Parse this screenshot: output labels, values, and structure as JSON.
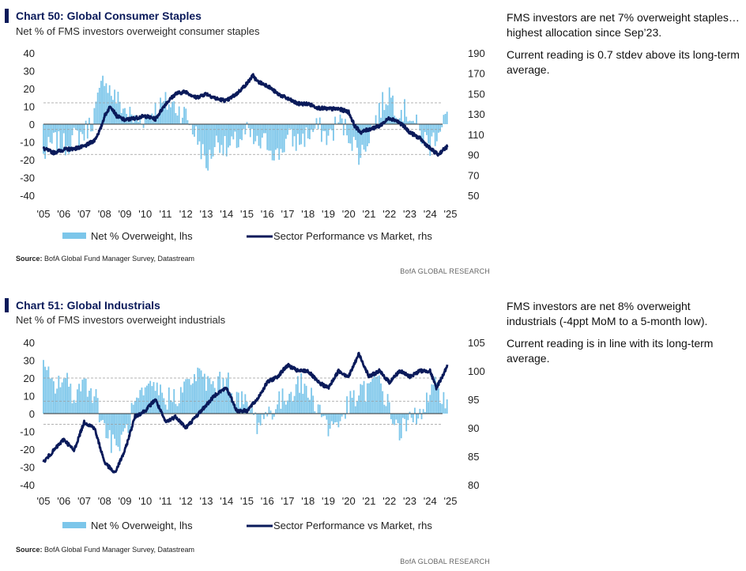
{
  "charts": [
    {
      "title": "Chart 50: Global Consumer Staples",
      "subtitle": "Net % of FMS investors overweight consumer staples",
      "source_label": "Source:",
      "source_text": "BofA Global Fund Manager Survey, Datastream",
      "brand": "BofA GLOBAL RESEARCH",
      "notes": [
        "FMS investors are net 7% overweight staples…highest allocation since Sep’23.",
        "Current reading is 0.7 stdev above its long-term average."
      ]
    },
    {
      "title": "Chart 51: Global Industrials",
      "subtitle": "Net % of FMS investors overweight industrials",
      "source_label": "Source:",
      "source_text": "BofA Global Fund Manager Survey, Datastream",
      "brand": "BofA GLOBAL RESEARCH",
      "notes": [
        "FMS investors are net 8% overweight industrials (-4ppt MoM to a 5-month low).",
        "Current reading is in line with its long-term average."
      ]
    }
  ],
  "chart_data": [
    {
      "type": "bar+line",
      "x_tick_labels": [
        "'05",
        "'06",
        "'07",
        "'08",
        "'09",
        "'10",
        "'11",
        "'12",
        "'13",
        "'14",
        "'15",
        "'16",
        "'17",
        "'18",
        "'19",
        "'20",
        "'21",
        "'22",
        "'23",
        "'24",
        "'25"
      ],
      "x_start_year": 2005,
      "x_end_year": 2025,
      "left_axis": {
        "ticks": [
          "40",
          "30",
          "20",
          "10",
          "0",
          "-10",
          "-20",
          "-30",
          "-40"
        ],
        "ylim": [
          -40,
          40
        ]
      },
      "right_axis": {
        "ticks": [
          "190",
          "170",
          "150",
          "130",
          "110",
          "90",
          "70",
          "50"
        ],
        "ylim": [
          50,
          190
        ]
      },
      "reference_lines": [
        12,
        0,
        -3,
        -17
      ],
      "series": [
        {
          "name": "Net % Overweight, lhs",
          "kind": "bar",
          "color": "#7cc6ea",
          "anchors": [
            [
              2005.0,
              -18
            ],
            [
              2005.5,
              -10
            ],
            [
              2006.0,
              -12
            ],
            [
              2006.5,
              -8
            ],
            [
              2007.0,
              -5
            ],
            [
              2007.4,
              2
            ],
            [
              2007.8,
              18
            ],
            [
              2008.0,
              28
            ],
            [
              2008.3,
              18
            ],
            [
              2008.6,
              14
            ],
            [
              2009.0,
              8
            ],
            [
              2009.5,
              2
            ],
            [
              2010.0,
              4
            ],
            [
              2010.5,
              8
            ],
            [
              2011.0,
              12
            ],
            [
              2011.5,
              10
            ],
            [
              2012.0,
              5
            ],
            [
              2012.5,
              -6
            ],
            [
              2012.8,
              -15
            ],
            [
              2013.0,
              -24
            ],
            [
              2013.3,
              -15
            ],
            [
              2013.6,
              -8
            ],
            [
              2014.0,
              -15
            ],
            [
              2014.5,
              -10
            ],
            [
              2015.0,
              -5
            ],
            [
              2015.5,
              -12
            ],
            [
              2016.0,
              -10
            ],
            [
              2016.5,
              -18
            ],
            [
              2017.0,
              -8
            ],
            [
              2017.5,
              -10
            ],
            [
              2018.0,
              -6
            ],
            [
              2018.5,
              -2
            ],
            [
              2019.0,
              -8
            ],
            [
              2019.5,
              2
            ],
            [
              2020.0,
              -5
            ],
            [
              2020.3,
              -12
            ],
            [
              2020.6,
              -18
            ],
            [
              2021.0,
              -6
            ],
            [
              2021.3,
              2
            ],
            [
              2021.7,
              12
            ],
            [
              2022.0,
              18
            ],
            [
              2022.3,
              10
            ],
            [
              2022.6,
              8
            ],
            [
              2023.0,
              6
            ],
            [
              2023.5,
              -5
            ],
            [
              2024.0,
              -12
            ],
            [
              2024.3,
              -5
            ],
            [
              2024.6,
              2
            ],
            [
              2024.85,
              7
            ]
          ],
          "last_value": 7
        },
        {
          "name": "Sector Performance vs Market, rhs",
          "kind": "line",
          "color": "#0a1a5a",
          "anchors": [
            [
              2005.0,
              96
            ],
            [
              2005.5,
              92
            ],
            [
              2006.0,
              95
            ],
            [
              2006.5,
              96
            ],
            [
              2007.0,
              98
            ],
            [
              2007.5,
              104
            ],
            [
              2007.8,
              115
            ],
            [
              2008.0,
              128
            ],
            [
              2008.3,
              138
            ],
            [
              2008.6,
              128
            ],
            [
              2009.0,
              124
            ],
            [
              2009.5,
              126
            ],
            [
              2010.0,
              128
            ],
            [
              2010.5,
              125
            ],
            [
              2011.0,
              140
            ],
            [
              2011.5,
              150
            ],
            [
              2012.0,
              152
            ],
            [
              2012.5,
              146
            ],
            [
              2013.0,
              150
            ],
            [
              2013.5,
              145
            ],
            [
              2014.0,
              143
            ],
            [
              2014.5,
              150
            ],
            [
              2015.0,
              160
            ],
            [
              2015.3,
              168
            ],
            [
              2015.5,
              162
            ],
            [
              2016.0,
              158
            ],
            [
              2016.5,
              150
            ],
            [
              2017.0,
              145
            ],
            [
              2017.5,
              140
            ],
            [
              2018.0,
              140
            ],
            [
              2018.5,
              136
            ],
            [
              2019.0,
              135
            ],
            [
              2019.5,
              135
            ],
            [
              2020.0,
              132
            ],
            [
              2020.3,
              118
            ],
            [
              2020.6,
              112
            ],
            [
              2021.0,
              115
            ],
            [
              2021.5,
              118
            ],
            [
              2022.0,
              126
            ],
            [
              2022.3,
              124
            ],
            [
              2022.6,
              120
            ],
            [
              2023.0,
              112
            ],
            [
              2023.5,
              106
            ],
            [
              2024.0,
              96
            ],
            [
              2024.4,
              90
            ],
            [
              2024.6,
              94
            ],
            [
              2024.85,
              98
            ]
          ]
        }
      ]
    },
    {
      "type": "bar+line",
      "x_tick_labels": [
        "'05",
        "'06",
        "'07",
        "'08",
        "'09",
        "'10",
        "'11",
        "'12",
        "'13",
        "'14",
        "'15",
        "'16",
        "'17",
        "'18",
        "'19",
        "'20",
        "'21",
        "'22",
        "'23",
        "'24",
        "'25"
      ],
      "x_start_year": 2005,
      "x_end_year": 2025,
      "left_axis": {
        "ticks": [
          "40",
          "30",
          "20",
          "10",
          "0",
          "-10",
          "-20",
          "-30",
          "-40"
        ],
        "ylim": [
          -40,
          40
        ]
      },
      "right_axis": {
        "ticks": [
          "105",
          "100",
          "95",
          "90",
          "85",
          "80"
        ],
        "ylim": [
          80,
          105
        ]
      },
      "reference_lines": [
        20,
        7,
        0,
        -6
      ],
      "series": [
        {
          "name": "Net % Overweight, lhs",
          "kind": "bar",
          "color": "#7cc6ea",
          "anchors": [
            [
              2005.0,
              25
            ],
            [
              2005.5,
              15
            ],
            [
              2006.0,
              20
            ],
            [
              2006.5,
              10
            ],
            [
              2007.0,
              18
            ],
            [
              2007.5,
              12
            ],
            [
              2008.0,
              -8
            ],
            [
              2008.5,
              -20
            ],
            [
              2009.0,
              -12
            ],
            [
              2009.5,
              5
            ],
            [
              2010.0,
              10
            ],
            [
              2010.5,
              15
            ],
            [
              2011.0,
              8
            ],
            [
              2011.5,
              10
            ],
            [
              2012.0,
              15
            ],
            [
              2012.5,
              22
            ],
            [
              2013.0,
              18
            ],
            [
              2013.5,
              15
            ],
            [
              2014.0,
              20
            ],
            [
              2014.5,
              8
            ],
            [
              2015.0,
              5
            ],
            [
              2015.5,
              -5
            ],
            [
              2016.0,
              0
            ],
            [
              2016.5,
              5
            ],
            [
              2017.0,
              10
            ],
            [
              2017.5,
              18
            ],
            [
              2018.0,
              12
            ],
            [
              2018.5,
              5
            ],
            [
              2019.0,
              -8
            ],
            [
              2019.5,
              -5
            ],
            [
              2020.0,
              5
            ],
            [
              2020.5,
              10
            ],
            [
              2021.0,
              15
            ],
            [
              2021.5,
              20
            ],
            [
              2022.0,
              2
            ],
            [
              2022.5,
              -10
            ],
            [
              2023.0,
              -5
            ],
            [
              2023.5,
              2
            ],
            [
              2024.0,
              8
            ],
            [
              2024.3,
              15
            ],
            [
              2024.6,
              12
            ],
            [
              2024.85,
              8
            ]
          ],
          "last_value": 8
        },
        {
          "name": "Sector Performance vs Market, rhs",
          "kind": "line",
          "color": "#0a1a5a",
          "anchors": [
            [
              2005.0,
              84
            ],
            [
              2005.5,
              86
            ],
            [
              2006.0,
              88
            ],
            [
              2006.5,
              86
            ],
            [
              2007.0,
              91
            ],
            [
              2007.5,
              90
            ],
            [
              2008.0,
              84
            ],
            [
              2008.5,
              82
            ],
            [
              2009.0,
              86
            ],
            [
              2009.5,
              92
            ],
            [
              2010.0,
              93
            ],
            [
              2010.5,
              95
            ],
            [
              2011.0,
              91
            ],
            [
              2011.5,
              92
            ],
            [
              2012.0,
              90
            ],
            [
              2012.5,
              92
            ],
            [
              2013.0,
              94
            ],
            [
              2013.5,
              96
            ],
            [
              2014.0,
              97
            ],
            [
              2014.5,
              93
            ],
            [
              2015.0,
              93
            ],
            [
              2015.5,
              95
            ],
            [
              2016.0,
              98
            ],
            [
              2016.5,
              99
            ],
            [
              2017.0,
              101
            ],
            [
              2017.5,
              100
            ],
            [
              2018.0,
              100
            ],
            [
              2018.5,
              98
            ],
            [
              2019.0,
              97
            ],
            [
              2019.5,
              100
            ],
            [
              2020.0,
              99
            ],
            [
              2020.5,
              103
            ],
            [
              2021.0,
              99
            ],
            [
              2021.5,
              100
            ],
            [
              2022.0,
              98
            ],
            [
              2022.5,
              100
            ],
            [
              2023.0,
              99
            ],
            [
              2023.5,
              100
            ],
            [
              2024.0,
              100
            ],
            [
              2024.3,
              97
            ],
            [
              2024.6,
              99
            ],
            [
              2024.85,
              101
            ]
          ]
        }
      ]
    }
  ]
}
